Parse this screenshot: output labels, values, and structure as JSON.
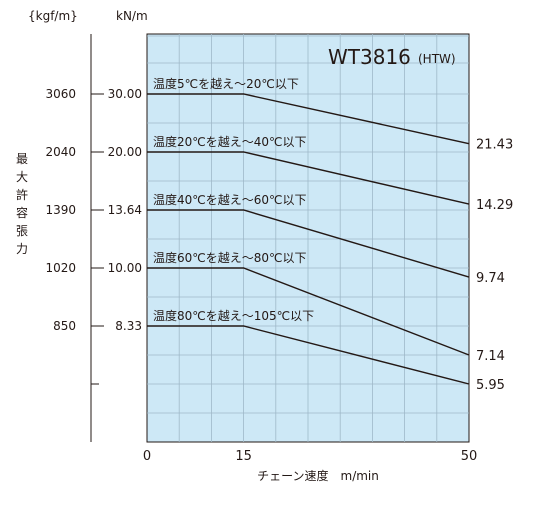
{
  "chart_data": {
    "type": "line",
    "title": "WT3816",
    "subtitle": "(HTW)",
    "xlabel": "チェーン速度　m/min",
    "ylabel": "最大許容張力",
    "units": {
      "left": "{kgf/m}",
      "right": "kN/m"
    },
    "xlim": [
      0,
      50
    ],
    "ylim": [
      5.95,
      30.0
    ],
    "x_ticks": [
      0,
      15,
      50
    ],
    "x_tick_labels": [
      "0",
      "15",
      "50"
    ],
    "y_ticks": [
      {
        "kN": 30.0,
        "kN_label": "30.00",
        "kgf": "3060"
      },
      {
        "kN": 20.0,
        "kN_label": "20.00",
        "kgf": "2040"
      },
      {
        "kN": 13.64,
        "kN_label": "13.64",
        "kgf": "1390"
      },
      {
        "kN": 10.0,
        "kN_label": "10.00",
        "kgf": "1020"
      },
      {
        "kN": 8.33,
        "kN_label": "8.33",
        "kgf": "850"
      },
      {
        "kN": 5.95,
        "kN_label": "",
        "kgf": ""
      }
    ],
    "series": [
      {
        "name": "温度5℃を越え～20℃以下",
        "x": [
          0,
          15,
          50
        ],
        "y": [
          30.0,
          30.0,
          21.43
        ],
        "end_label": "21.43"
      },
      {
        "name": "温度20℃を越え～40℃以下",
        "x": [
          0,
          15,
          50
        ],
        "y": [
          20.0,
          20.0,
          14.29
        ],
        "end_label": "14.29"
      },
      {
        "name": "温度40℃を越え～60℃以下",
        "x": [
          0,
          15,
          50
        ],
        "y": [
          13.64,
          13.64,
          9.74
        ],
        "end_label": "9.74"
      },
      {
        "name": "温度60℃を越え～80℃以下",
        "x": [
          0,
          15,
          50
        ],
        "y": [
          10.0,
          10.0,
          7.14
        ],
        "end_label": "7.14"
      },
      {
        "name": "温度80℃を越え～105℃以下",
        "x": [
          0,
          15,
          50
        ],
        "y": [
          8.33,
          8.33,
          5.95
        ],
        "end_label": "5.95"
      }
    ],
    "grid": true,
    "colors": {
      "plot_bg": "#cde8f6",
      "grid": "#9fb9c9",
      "line": "#231815",
      "axis": "#231815"
    }
  }
}
